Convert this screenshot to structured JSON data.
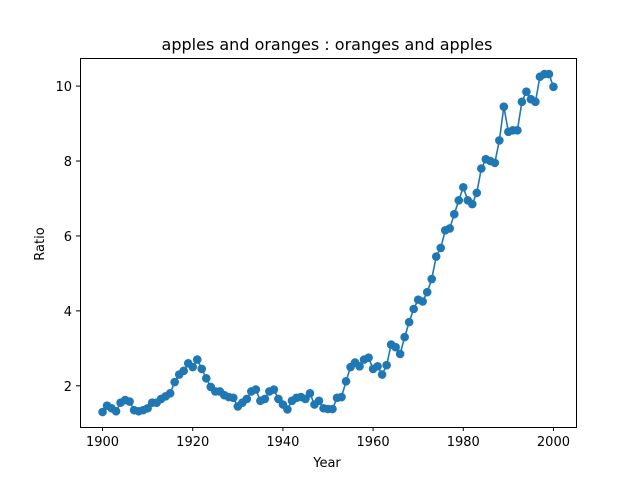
{
  "chart_data": {
    "type": "line",
    "title": "apples and oranges : oranges and apples",
    "xlabel": "Year",
    "ylabel": "Ratio",
    "xlim": [
      1895,
      2005
    ],
    "ylim": [
      0.9,
      10.75
    ],
    "xticks": [
      1900,
      1920,
      1940,
      1960,
      1980,
      2000
    ],
    "yticks": [
      2,
      4,
      6,
      8,
      10
    ],
    "grid": false,
    "legend": "none",
    "color": "#1f77b4",
    "series": [
      {
        "x": [
          1900,
          1901,
          1902,
          1903,
          1904,
          1905,
          1906,
          1907,
          1908,
          1909,
          1910,
          1911,
          1912,
          1913,
          1914,
          1915,
          1916,
          1917,
          1918,
          1919,
          1920,
          1921,
          1922,
          1923,
          1924,
          1925,
          1926,
          1927,
          1928,
          1929,
          1930,
          1931,
          1932,
          1933,
          1934,
          1935,
          1936,
          1937,
          1938,
          1939,
          1940,
          1941,
          1942,
          1943,
          1944,
          1945,
          1946,
          1947,
          1948,
          1949,
          1950,
          1951,
          1952,
          1953,
          1954,
          1955,
          1956,
          1957,
          1958,
          1959,
          1960,
          1961,
          1962,
          1963,
          1964,
          1965,
          1966,
          1967,
          1968,
          1969,
          1970,
          1971,
          1972,
          1973,
          1974,
          1975,
          1976,
          1977,
          1978,
          1979,
          1980,
          1981,
          1982,
          1983,
          1984,
          1985,
          1986,
          1987,
          1988,
          1989,
          1990,
          1991,
          1992,
          1993,
          1994,
          1995,
          1996,
          1997,
          1998,
          1999,
          2000
        ],
        "y": [
          1.3,
          1.47,
          1.4,
          1.32,
          1.55,
          1.62,
          1.58,
          1.35,
          1.32,
          1.35,
          1.4,
          1.55,
          1.55,
          1.65,
          1.72,
          1.8,
          2.1,
          2.3,
          2.4,
          2.6,
          2.5,
          2.7,
          2.45,
          2.2,
          1.97,
          1.85,
          1.85,
          1.75,
          1.7,
          1.68,
          1.45,
          1.55,
          1.65,
          1.85,
          1.9,
          1.6,
          1.65,
          1.85,
          1.9,
          1.65,
          1.5,
          1.37,
          1.6,
          1.68,
          1.7,
          1.65,
          1.8,
          1.5,
          1.6,
          1.4,
          1.38,
          1.38,
          1.68,
          1.7,
          2.12,
          2.5,
          2.62,
          2.52,
          2.7,
          2.75,
          2.45,
          2.52,
          2.3,
          2.55,
          3.1,
          3.03,
          2.85,
          3.3,
          3.7,
          4.05,
          4.3,
          4.25,
          4.5,
          4.85,
          5.45,
          5.68,
          6.15,
          6.2,
          6.58,
          6.95,
          7.3,
          6.95,
          6.85,
          7.15,
          7.8,
          8.05,
          8.0,
          7.95,
          8.55,
          9.45,
          8.78,
          8.82,
          8.82,
          9.58,
          9.85,
          9.65,
          9.58,
          10.25,
          10.32,
          10.32,
          9.98
        ]
      }
    ]
  }
}
